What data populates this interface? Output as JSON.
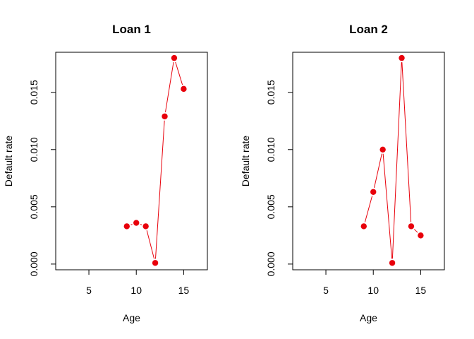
{
  "chart_data": [
    {
      "type": "line",
      "title": "Loan 1",
      "xlabel": "Age",
      "ylabel": "Default rate",
      "xlim": [
        1.5,
        17.5
      ],
      "ylim": [
        -0.0005,
        0.0185
      ],
      "x_ticks": [
        5,
        10,
        15
      ],
      "y_ticks": [
        0.0,
        0.005,
        0.01,
        0.015
      ],
      "x_tick_labels": [
        "5",
        "10",
        "15"
      ],
      "y_tick_labels": [
        "0.000",
        "0.005",
        "0.010",
        "0.015"
      ],
      "grid": false,
      "legend": "none",
      "series": [
        {
          "color": "#e8000b",
          "x": [
            9,
            10,
            11,
            12,
            13,
            14,
            15
          ],
          "y": [
            0.0033,
            0.0036,
            0.0033,
            0.0001,
            0.0129,
            0.018,
            0.0153
          ]
        }
      ]
    },
    {
      "type": "line",
      "title": "Loan 2",
      "xlabel": "Age",
      "ylabel": "Default rate",
      "xlim": [
        1.5,
        17.5
      ],
      "ylim": [
        -0.0005,
        0.0185
      ],
      "x_ticks": [
        5,
        10,
        15
      ],
      "y_ticks": [
        0.0,
        0.005,
        0.01,
        0.015
      ],
      "x_tick_labels": [
        "5",
        "10",
        "15"
      ],
      "y_tick_labels": [
        "0.000",
        "0.005",
        "0.010",
        "0.015"
      ],
      "grid": false,
      "legend": "none",
      "series": [
        {
          "color": "#e8000b",
          "x": [
            9,
            10,
            11,
            12,
            13,
            14,
            15
          ],
          "y": [
            0.0033,
            0.0063,
            0.01,
            0.0001,
            0.018,
            0.0033,
            0.0025
          ]
        }
      ]
    }
  ]
}
